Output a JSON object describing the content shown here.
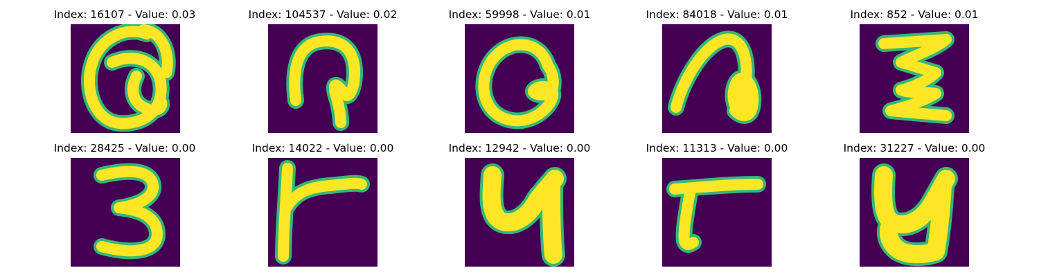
{
  "colors": {
    "background": "#440154",
    "stroke_core": "#fde725",
    "stroke_edge": "#35b779",
    "stroke_mid": "#31688e"
  },
  "panels": [
    {
      "title": "Index: 16107 - Value: 0.03",
      "glyph": "Q-shaped handwritten character"
    },
    {
      "title": "Index: 104537 - Value: 0.02",
      "glyph": "P-shaped loop handwritten character"
    },
    {
      "title": "Index: 59998 - Value: 0.01",
      "glyph": "a-shaped handwritten character"
    },
    {
      "title": "Index: 84018 - Value: 0.01",
      "glyph": "n-shaped handwritten character"
    },
    {
      "title": "Index: 852 - Value: 0.01",
      "glyph": "z-shaped handwritten character"
    },
    {
      "title": "Index: 28425 - Value: 0.00",
      "glyph": "digit 3"
    },
    {
      "title": "Index: 14022 - Value: 0.00",
      "glyph": "r-shaped handwritten character"
    },
    {
      "title": "Index: 12942 - Value: 0.00",
      "glyph": "y-shaped handwritten character"
    },
    {
      "title": "Index: 11313 - Value: 0.00",
      "glyph": "r-shaped handwritten character"
    },
    {
      "title": "Index: 31227 - Value: 0.00",
      "glyph": "y-shaped handwritten character"
    }
  ]
}
